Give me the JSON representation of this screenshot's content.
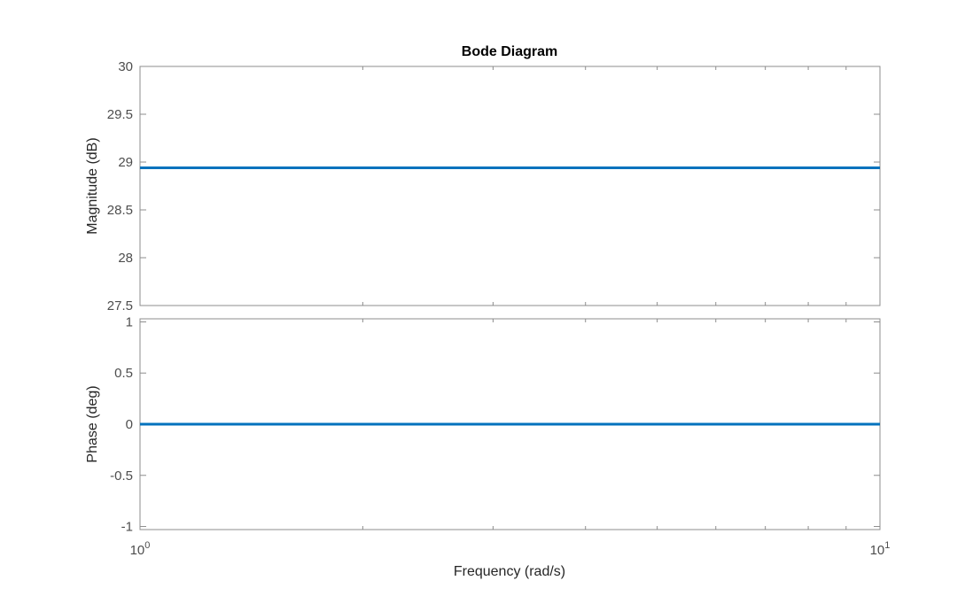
{
  "chart_data": {
    "type": "line",
    "title": "Bode Diagram",
    "xlabel": "Frequency  (rad/s)",
    "xscale": "log",
    "xlim": [
      1,
      10
    ],
    "x_ticks": [
      1,
      10
    ],
    "x_tick_labels": [
      {
        "base": "10",
        "exp": "0"
      },
      {
        "base": "10",
        "exp": "1"
      }
    ],
    "minor_x_ticks": [
      2,
      3,
      4,
      5,
      6,
      7,
      8,
      9
    ],
    "line_color": "#0072BD",
    "panels": [
      {
        "name": "magnitude",
        "ylabel": "Magnitude (dB)",
        "ylim": [
          27.5,
          30
        ],
        "y_ticks": [
          27.5,
          28,
          28.5,
          29,
          29.5,
          30
        ],
        "y_tick_labels": [
          "27.5",
          "28",
          "28.5",
          "29",
          "29.5",
          "30"
        ],
        "series": [
          {
            "x": [
              1,
              10
            ],
            "y": [
              28.94,
              28.94
            ]
          }
        ]
      },
      {
        "name": "phase",
        "ylabel": "Phase (deg)",
        "ylim": [
          -1.03,
          1.03
        ],
        "y_ticks": [
          -1,
          -0.5,
          0,
          0.5,
          1
        ],
        "y_tick_labels": [
          "-1",
          "-0.5",
          "0",
          "0.5",
          "1"
        ],
        "series": [
          {
            "x": [
              1,
              10
            ],
            "y": [
              0,
              0
            ]
          }
        ]
      }
    ]
  }
}
